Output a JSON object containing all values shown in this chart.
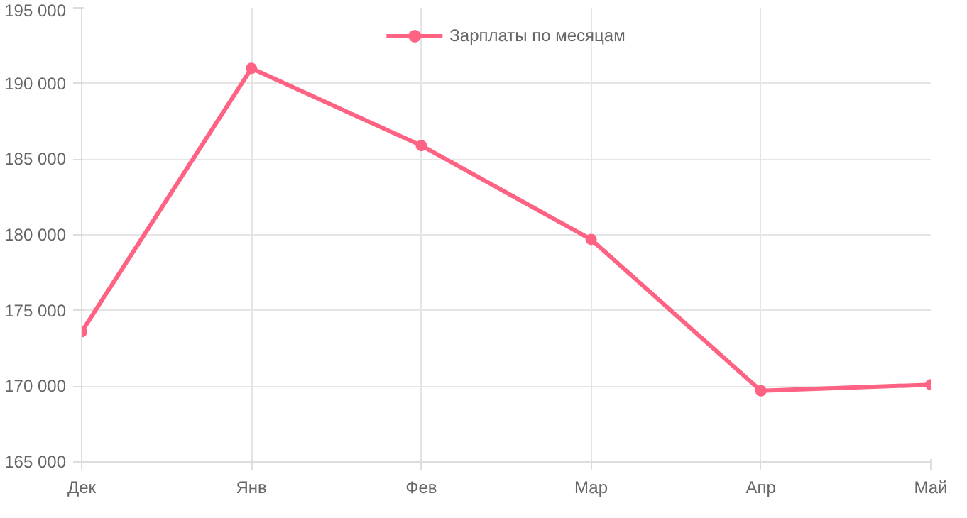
{
  "chart_data": {
    "type": "line",
    "categories": [
      "Дек",
      "Янв",
      "Фев",
      "Мар",
      "Апр",
      "Май"
    ],
    "series": [
      {
        "name": "Зарплаты по месяцам",
        "color": "#ff6384",
        "values": [
          173600,
          191000,
          185900,
          179700,
          169700,
          170100
        ]
      }
    ],
    "ylim": [
      165000,
      195000
    ],
    "yticks": [
      {
        "value": 165000,
        "label": "165 000"
      },
      {
        "value": 170000,
        "label": "170 000"
      },
      {
        "value": 175000,
        "label": "175 000"
      },
      {
        "value": 180000,
        "label": "180 000"
      },
      {
        "value": 185000,
        "label": "185 000"
      },
      {
        "value": 190000,
        "label": "190 000"
      },
      {
        "value": 195000,
        "label": "195 000"
      }
    ],
    "grid": true,
    "legend": "top",
    "marker": "circle",
    "line_style": "solid"
  }
}
